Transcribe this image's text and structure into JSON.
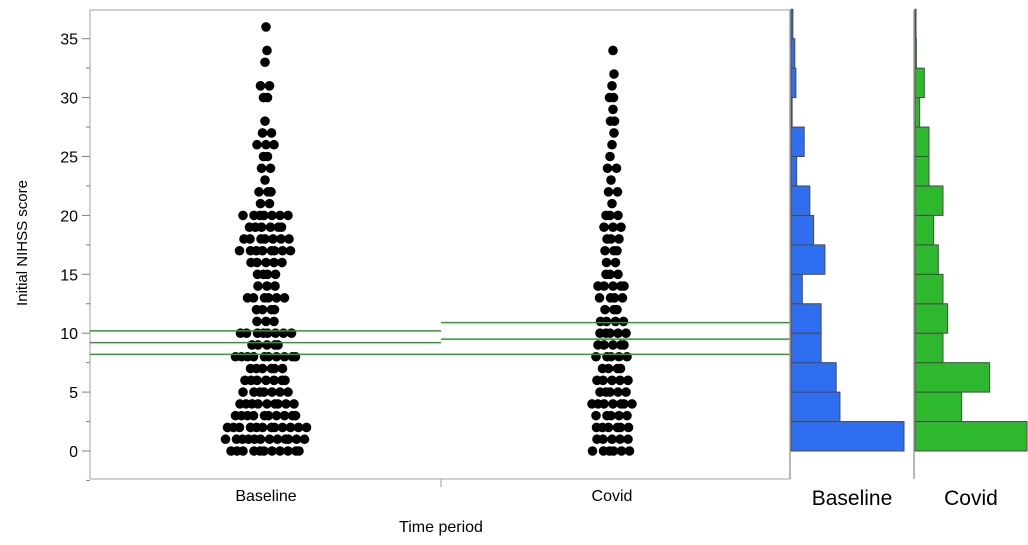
{
  "chart_data": {
    "type": "scatter",
    "xlabel": "Time period",
    "ylabel": "Initial NIHSS score",
    "categories": [
      "Baseline",
      "Covid"
    ],
    "ylim": [
      -2.5,
      37
    ],
    "yticks": [
      0,
      5,
      10,
      15,
      20,
      25,
      30,
      35
    ],
    "grid": false,
    "series": [
      {
        "name": "Baseline",
        "color": "#000000",
        "summary_lines": [
          8.2,
          9.2,
          10.2
        ],
        "summary_line_color": "#2e9a2e",
        "counts": {
          "0": 11,
          "1": 12,
          "2": 12,
          "3": 10,
          "4": 9,
          "5": 7,
          "6": 7,
          "7": 6,
          "8": 10,
          "9": 5,
          "10": 8,
          "11": 3,
          "12": 4,
          "13": 6,
          "14": 3,
          "15": 4,
          "16": 5,
          "17": 8,
          "18": 7,
          "19": 6,
          "20": 7,
          "21": 2,
          "22": 3,
          "23": 1,
          "24": 2,
          "25": 2,
          "26": 3,
          "27": 2,
          "28": 1,
          "30": 2,
          "31": 2,
          "33": 1,
          "34": 1,
          "36": 1
        }
      },
      {
        "name": "Covid",
        "color": "#000000",
        "summary_lines": [
          8.2,
          9.5,
          10.9
        ],
        "summary_line_color": "#2e9a2e",
        "counts": {
          "0": 6,
          "1": 5,
          "2": 6,
          "3": 5,
          "4": 7,
          "5": 5,
          "6": 5,
          "7": 4,
          "8": 5,
          "9": 5,
          "10": 5,
          "11": 4,
          "12": 3,
          "13": 4,
          "14": 5,
          "15": 3,
          "16": 2,
          "17": 3,
          "18": 3,
          "19": 3,
          "20": 3,
          "21": 1,
          "22": 2,
          "23": 1,
          "24": 2,
          "25": 1,
          "26": 1,
          "27": 1,
          "28": 2,
          "29": 1,
          "30": 2,
          "31": 1,
          "32": 1,
          "34": 1
        }
      }
    ],
    "histograms": [
      {
        "label": "Baseline",
        "color": "#2f6ef0",
        "bin_width": 2.5,
        "bins": [
          {
            "start": 0,
            "value": 30
          },
          {
            "start": 2.5,
            "value": 13
          },
          {
            "start": 5,
            "value": 12
          },
          {
            "start": 7.5,
            "value": 8
          },
          {
            "start": 10,
            "value": 8
          },
          {
            "start": 12.5,
            "value": 3
          },
          {
            "start": 15,
            "value": 9
          },
          {
            "start": 17.5,
            "value": 6
          },
          {
            "start": 20,
            "value": 5
          },
          {
            "start": 22.5,
            "value": 1.5
          },
          {
            "start": 25,
            "value": 3.5
          },
          {
            "start": 27.5,
            "value": 0.3
          },
          {
            "start": 30,
            "value": 1.3
          },
          {
            "start": 32.5,
            "value": 1
          },
          {
            "start": 35,
            "value": 0.5
          }
        ]
      },
      {
        "label": "Covid",
        "color": "#2db82d",
        "bin_width": 2.5,
        "bins": [
          {
            "start": 0,
            "value": 24
          },
          {
            "start": 2.5,
            "value": 10
          },
          {
            "start": 5,
            "value": 16
          },
          {
            "start": 7.5,
            "value": 6
          },
          {
            "start": 10,
            "value": 7
          },
          {
            "start": 12.5,
            "value": 6
          },
          {
            "start": 15,
            "value": 5
          },
          {
            "start": 17.5,
            "value": 4
          },
          {
            "start": 20,
            "value": 6
          },
          {
            "start": 22.5,
            "value": 3
          },
          {
            "start": 25,
            "value": 3
          },
          {
            "start": 27.5,
            "value": 1
          },
          {
            "start": 30,
            "value": 2
          },
          {
            "start": 32.5,
            "value": 0.3
          },
          {
            "start": 35,
            "value": 0.2
          }
        ]
      }
    ]
  }
}
